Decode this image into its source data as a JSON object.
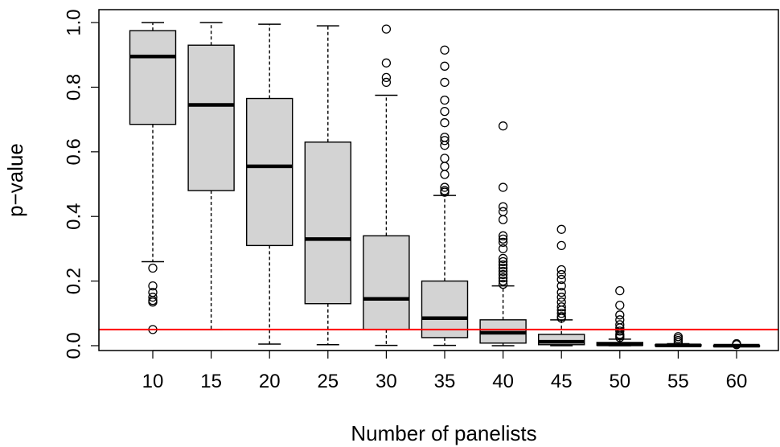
{
  "chart_data": {
    "type": "box",
    "xlabel": "Number of panelists",
    "ylabel": "p−value",
    "categories": [
      "10",
      "15",
      "20",
      "25",
      "30",
      "35",
      "40",
      "45",
      "50",
      "55",
      "60"
    ],
    "yticks": [
      "0.0",
      "0.2",
      "0.4",
      "0.6",
      "0.8",
      "1.0"
    ],
    "ylim": [
      -0.015,
      1.04
    ],
    "reference_line": {
      "y": 0.05,
      "color": "#ff0000"
    },
    "box_fill": "#d3d3d3",
    "boxes": [
      {
        "label": "10",
        "q1": 0.685,
        "median": 0.895,
        "q3": 0.975,
        "whisker_low": 0.26,
        "whisker_high": 1.0,
        "outliers": [
          0.24,
          0.185,
          0.165,
          0.15,
          0.14,
          0.135,
          0.05
        ]
      },
      {
        "label": "15",
        "q1": 0.48,
        "median": 0.745,
        "q3": 0.93,
        "whisker_low": 0.05,
        "whisker_high": 1.0,
        "outliers": []
      },
      {
        "label": "20",
        "q1": 0.31,
        "median": 0.555,
        "q3": 0.765,
        "whisker_low": 0.005,
        "whisker_high": 0.995,
        "outliers": []
      },
      {
        "label": "25",
        "q1": 0.13,
        "median": 0.33,
        "q3": 0.63,
        "whisker_low": 0.003,
        "whisker_high": 0.99,
        "outliers": []
      },
      {
        "label": "30",
        "q1": 0.05,
        "median": 0.145,
        "q3": 0.34,
        "whisker_low": 0.001,
        "whisker_high": 0.775,
        "outliers": [
          0.98,
          0.875,
          0.83,
          0.815
        ]
      },
      {
        "label": "35",
        "q1": 0.025,
        "median": 0.085,
        "q3": 0.2,
        "whisker_low": 0.001,
        "whisker_high": 0.465,
        "outliers": [
          0.915,
          0.865,
          0.815,
          0.76,
          0.725,
          0.69,
          0.645,
          0.635,
          0.62,
          0.58,
          0.555,
          0.53,
          0.49,
          0.48,
          0.475
        ]
      },
      {
        "label": "40",
        "q1": 0.008,
        "median": 0.04,
        "q3": 0.08,
        "whisker_low": 0.0,
        "whisker_high": 0.185,
        "outliers": [
          0.68,
          0.49,
          0.43,
          0.415,
          0.39,
          0.34,
          0.33,
          0.32,
          0.3,
          0.27,
          0.26,
          0.25,
          0.24,
          0.23,
          0.22,
          0.21,
          0.2,
          0.19
        ]
      },
      {
        "label": "45",
        "q1": 0.003,
        "median": 0.012,
        "q3": 0.035,
        "whisker_low": 0.0,
        "whisker_high": 0.08,
        "outliers": [
          0.36,
          0.31,
          0.235,
          0.22,
          0.205,
          0.185,
          0.165,
          0.15,
          0.135,
          0.12,
          0.11,
          0.1,
          0.09,
          0.085
        ]
      },
      {
        "label": "50",
        "q1": 0.001,
        "median": 0.004,
        "q3": 0.01,
        "whisker_low": 0.0,
        "whisker_high": 0.02,
        "outliers": [
          0.17,
          0.125,
          0.095,
          0.08,
          0.065,
          0.055,
          0.045,
          0.035,
          0.03,
          0.025
        ]
      },
      {
        "label": "55",
        "q1": 0.0,
        "median": 0.001,
        "q3": 0.003,
        "whisker_low": 0.0,
        "whisker_high": 0.006,
        "outliers": [
          0.028,
          0.022,
          0.016,
          0.01
        ]
      },
      {
        "label": "60",
        "q1": 0.0,
        "median": 0.0,
        "q3": 0.001,
        "whisker_low": 0.0,
        "whisker_high": 0.002,
        "outliers": [
          0.006,
          0.003
        ]
      }
    ]
  }
}
